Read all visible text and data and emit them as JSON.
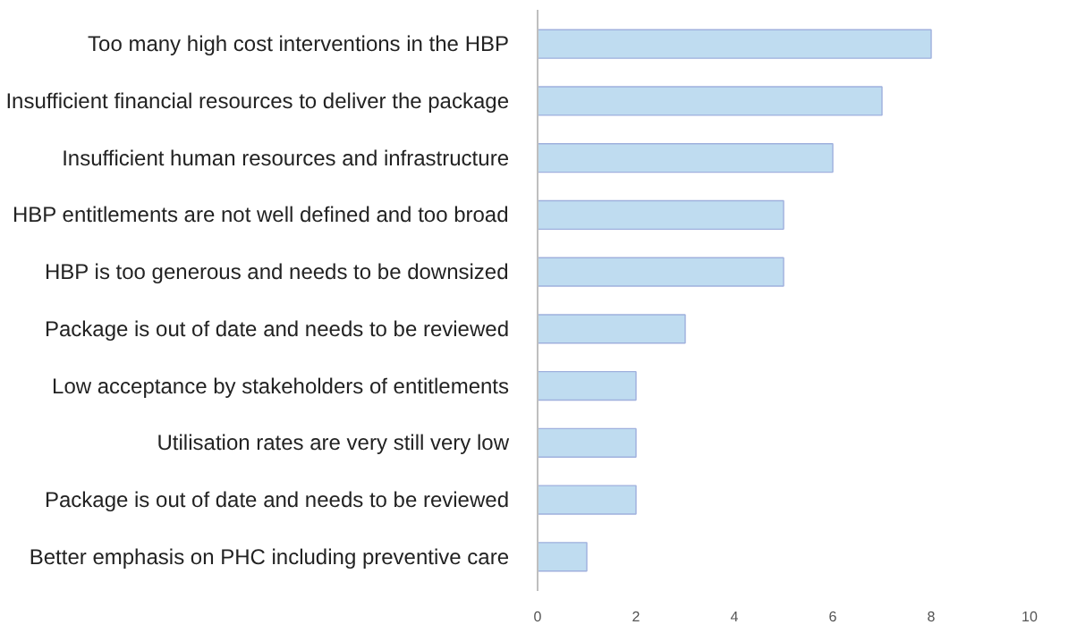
{
  "chart_data": {
    "type": "bar",
    "orientation": "horizontal",
    "categories": [
      "Too many high cost interventions in the HBP",
      "Insufficient financial resources to deliver the package",
      "Insufficient human resources and infrastructure",
      "HBP entitlements are not well defined and too broad",
      "HBP is too generous and needs to be downsized",
      "Package is out of date and needs to be reviewed",
      "Low acceptance by stakeholders of entitlements",
      "Utilisation rates are very still very low",
      "Package is out of date and needs to be reviewed",
      "Better emphasis on PHC including preventive care"
    ],
    "values": [
      8,
      7,
      6,
      5,
      5,
      3,
      2,
      2,
      2,
      1
    ],
    "color": "#bfdcf0",
    "xlim": [
      0,
      10
    ],
    "xticks": [
      0,
      2,
      4,
      6,
      8,
      10
    ],
    "grid": false
  }
}
